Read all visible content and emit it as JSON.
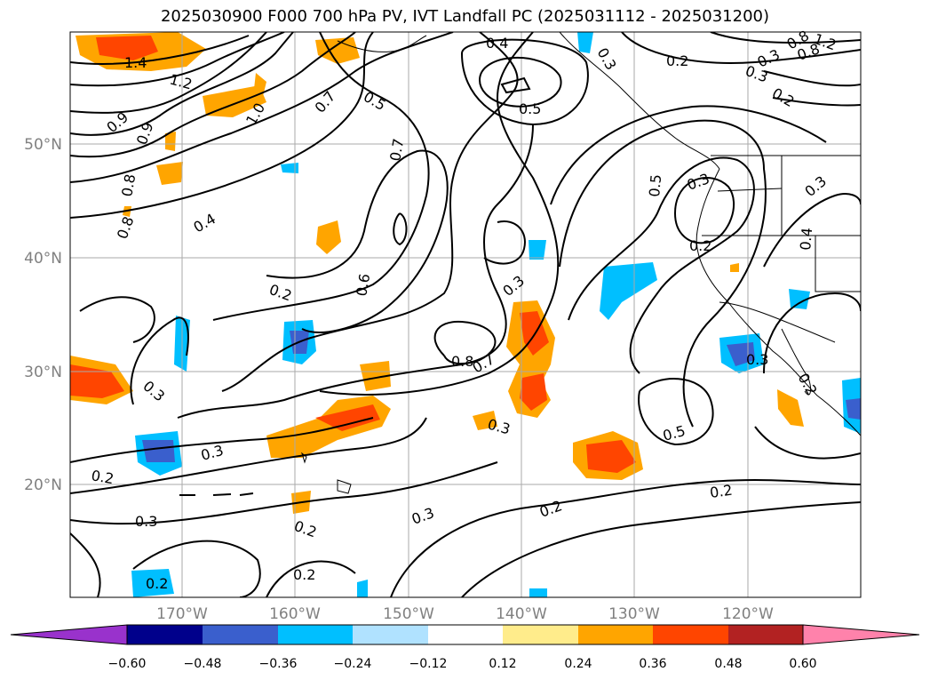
{
  "title": "2025030900 F000 700 hPa PV, IVT Landfall PC (2025031112 - 2025031200)",
  "lat_labels": [
    "50°N",
    "40°N",
    "30°N",
    "20°N"
  ],
  "lon_labels": [
    "170°W",
    "160°W",
    "150°W",
    "140°W",
    "130°W",
    "120°W"
  ],
  "colorbar": {
    "ticks": [
      "−0.60",
      "−0.48",
      "−0.36",
      "−0.24",
      "−0.12",
      "0.12",
      "0.24",
      "0.36",
      "0.48",
      "0.60"
    ],
    "colors": [
      "#9932cc",
      "#00008b",
      "#3a5fcd",
      "#00bfff",
      "#b0e2ff",
      "#ffffff",
      "#ffec8b",
      "#ffa500",
      "#ff4500",
      "#b22222",
      "#ff82ab"
    ]
  },
  "contour_labels": [
    "1.4",
    "1.2",
    "1.0",
    "0.7",
    "0.5",
    "0.4",
    "0.5",
    "0.3",
    "0.2",
    "0.3",
    "0.2",
    "0.9",
    "0.9",
    "0.8",
    "0.8",
    "0.4",
    "0.7",
    "0.6",
    "0.2",
    "0.3",
    "0.8",
    "0.7",
    "0.3",
    "0.5",
    "0.3",
    "0.2",
    "0.4",
    "0.3",
    "0.3",
    "0.5",
    "0.3",
    "0.2",
    "0.3",
    "0.2",
    "0.2",
    "0.3",
    "0.2",
    "0.3",
    "0.2",
    "0.2",
    "0.8",
    "0.8",
    "0.3",
    "1.2",
    "0.2"
  ]
}
